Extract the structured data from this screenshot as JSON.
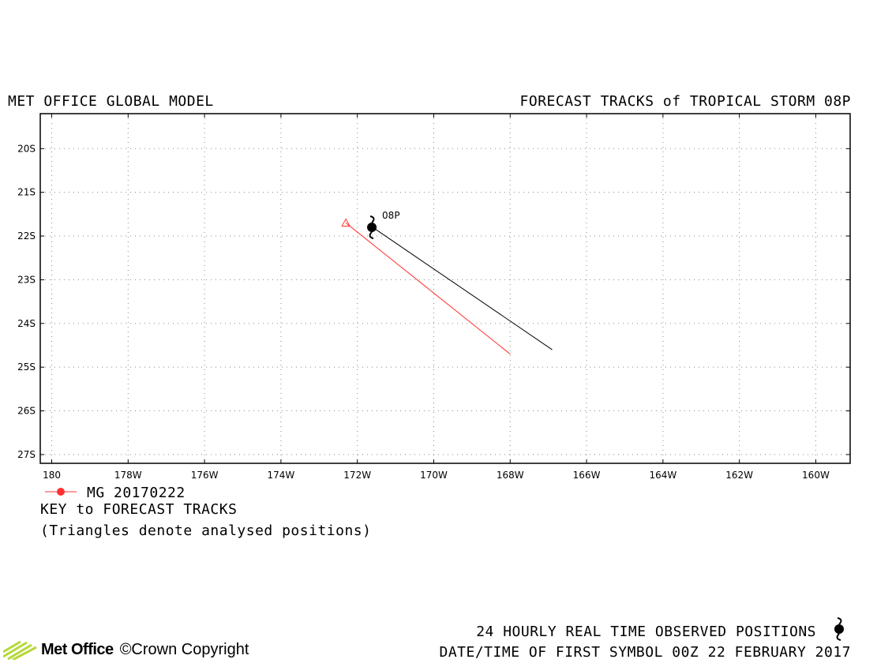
{
  "header": {
    "left_title": "MET OFFICE GLOBAL MODEL",
    "right_title": "FORECAST TRACKS of TROPICAL STORM 08P"
  },
  "chart_data": {
    "type": "map-track",
    "lat_ticks": [
      "20S",
      "21S",
      "22S",
      "23S",
      "24S",
      "25S",
      "26S",
      "27S"
    ],
    "lon_ticks": [
      "180",
      "178W",
      "176W",
      "174W",
      "172W",
      "170W",
      "168W",
      "166W",
      "164W",
      "162W",
      "160W"
    ],
    "lat_range": [
      -27.2,
      -19.2
    ],
    "lon_range_west": [
      180.3,
      159.1
    ],
    "grid": "dotted",
    "storm_label": "08P",
    "observed_track": [
      {
        "lon_w": 171.6,
        "lat_s": 21.8
      },
      {
        "lon_w": 166.9,
        "lat_s": 24.6
      }
    ],
    "forecast_tracks": [
      {
        "name": "MG 20170222",
        "color": "#ff3030",
        "analysed_position": {
          "lon_w": 172.3,
          "lat_s": 21.7
        },
        "points": [
          {
            "lon_w": 172.3,
            "lat_s": 21.7
          },
          {
            "lon_w": 168.0,
            "lat_s": 24.7
          }
        ]
      }
    ]
  },
  "legend": {
    "series_label": "MG 20170222",
    "key_title": "KEY to FORECAST TRACKS",
    "key_note": "(Triangles denote analysed positions)"
  },
  "footer": {
    "observed_text": "24 HOURLY REAL TIME OBSERVED POSITIONS",
    "datetime_text": "DATE/TIME OF FIRST SYMBOL 00Z 22 FEBRUARY 2017",
    "brand": "Met Office",
    "copyright": "©Crown Copyright"
  },
  "colors": {
    "forecast": "#ff3030",
    "observed": "#000000",
    "logo_green": "#b5d93a"
  }
}
